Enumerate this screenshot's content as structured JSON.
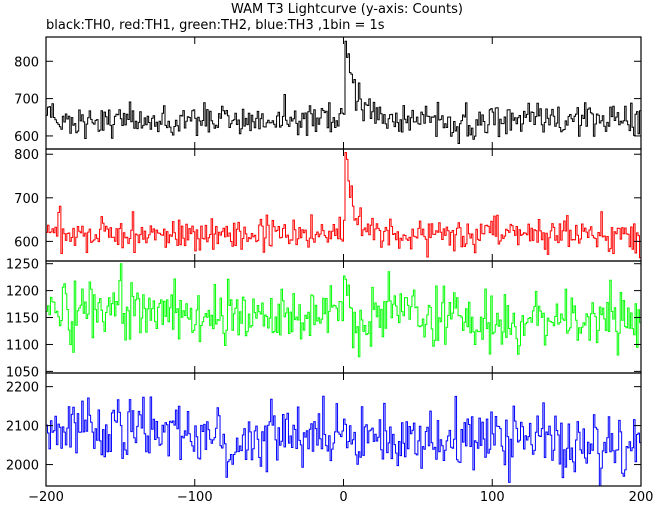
{
  "chart_data": {
    "type": "line",
    "title": "WAM T3 Lightcurve (y-axis: Counts)",
    "subtitle": "black:TH0, red:TH1, green:TH2, blue:TH3 ,1bin = 1s",
    "xlabel": "",
    "ylabel": "",
    "x_ticks": [
      "−200",
      "−100",
      "0",
      "100",
      "200"
    ],
    "xlim": [
      -200,
      200
    ],
    "grid": false,
    "panels": [
      {
        "name": "TH0",
        "color": "#000000",
        "ylim": [
          565,
          865
        ],
        "y_ticks": [
          600,
          700,
          800
        ],
        "y_tick_labels": [
          "600",
          "700",
          "800"
        ],
        "baseline": 645,
        "noise": 21,
        "trend": 0,
        "peak_value": 850,
        "peak_x": 1,
        "decay_s": 7
      },
      {
        "name": "TH1",
        "color": "#ff0000",
        "ylim": [
          555,
          812
        ],
        "y_ticks": [
          600,
          700,
          800
        ],
        "y_tick_labels": [
          "600",
          "700",
          "800"
        ],
        "baseline": 618,
        "noise": 19,
        "trend": 0,
        "peak_value": 810,
        "peak_x": 1,
        "decay_s": 5
      },
      {
        "name": "TH2",
        "color": "#00ff00",
        "ylim": [
          1047,
          1255
        ],
        "y_ticks": [
          1050,
          1100,
          1150,
          1200,
          1250
        ],
        "y_tick_labels": [
          "1050",
          "1100",
          "1150",
          "1200",
          "1250"
        ],
        "baseline": 1150,
        "noise": 30,
        "trend": -35,
        "peak_value": 1250,
        "peak_x": 0,
        "decay_s": 2
      },
      {
        "name": "TH3",
        "color": "#0000ff",
        "ylim": [
          1945,
          2235
        ],
        "y_ticks": [
          2000,
          2100,
          2200
        ],
        "y_tick_labels": [
          "2000",
          "2100",
          "2200"
        ],
        "baseline": 2070,
        "noise": 42,
        "trend": -45,
        "peak_value": 2140,
        "peak_x": 0,
        "decay_s": 2
      }
    ]
  }
}
